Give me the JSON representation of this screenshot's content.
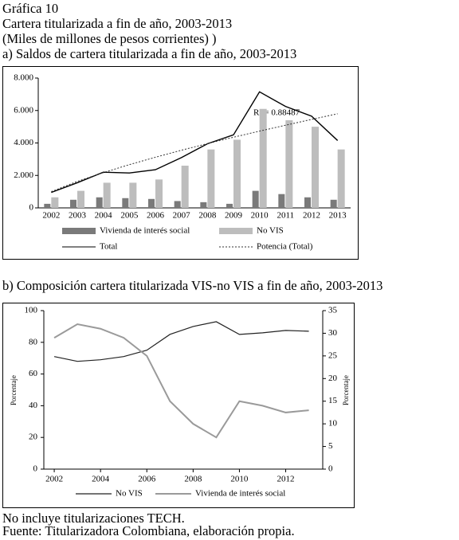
{
  "header": {
    "figure": "Gráfica 10",
    "title": "Cartera titularizada a fin de año, 2003-2013",
    "subtitle": "(Miles de millones de pesos corrientes) )"
  },
  "chart_data": [
    {
      "type": "bar",
      "title": "a) Saldos de cartera titularizada a fin de año, 2003-2013",
      "categories": [
        "2002",
        "2003",
        "2004",
        "2005",
        "2006",
        "2007",
        "2008",
        "2009",
        "2010",
        "2011",
        "2012",
        "2013"
      ],
      "series": [
        {
          "name": "Vivienda de interés social",
          "type": "bar",
          "color": "#7a7a7a",
          "values": [
            250,
            500,
            650,
            600,
            550,
            420,
            350,
            250,
            1050,
            850,
            650,
            500
          ]
        },
        {
          "name": "No VIS",
          "type": "bar",
          "color": "#bdbdbd",
          "values": [
            650,
            1050,
            1550,
            1550,
            1750,
            2600,
            3600,
            4200,
            6100,
            5400,
            5000,
            3600
          ]
        },
        {
          "name": "Total",
          "type": "line",
          "color": "#000000",
          "values": [
            950,
            1550,
            2200,
            2150,
            2350,
            3100,
            3950,
            4500,
            7150,
            6250,
            5650,
            4150
          ]
        },
        {
          "name": "Potencia (Total)",
          "type": "line",
          "dash": true,
          "color": "#333333",
          "values": [
            1000,
            1633,
            2173,
            2664,
            3119,
            3553,
            3960,
            4353,
            4730,
            5093,
            5453,
            5800
          ]
        }
      ],
      "annotation": "R² = 0.88487",
      "ylim": [
        0,
        8000
      ],
      "yticks": [
        0,
        {
          "value": 2000,
          "label": "2.000"
        },
        {
          "value": 4000,
          "label": "4.000"
        },
        {
          "value": 6000,
          "label": "6.000"
        },
        {
          "value": 8000,
          "label": "8.000"
        }
      ],
      "grid": false
    },
    {
      "type": "line",
      "title": "b) Composición cartera titularizada VIS-no VIS a fin de año, 2003-2013",
      "x": [
        2002,
        2003,
        2004,
        2005,
        2006,
        2007,
        2008,
        2009,
        2010,
        2011,
        2012,
        2013
      ],
      "series": [
        {
          "name": "No VIS",
          "color": "#222222",
          "values": [
            71,
            68,
            69,
            71,
            75,
            85,
            90,
            93,
            85,
            86,
            87.5,
            87
          ]
        },
        {
          "name": "Vivienda de interés social",
          "color": "#9a9a9a",
          "axis": "y2",
          "values": [
            29,
            32,
            31,
            29,
            25,
            15,
            10,
            7,
            15,
            14,
            12.5,
            13
          ]
        }
      ],
      "xlim": [
        2001.55,
        2013.6
      ],
      "xticks": [
        2002,
        2004,
        2006,
        2008,
        2010,
        2012
      ],
      "ylim": [
        0,
        100
      ],
      "yticks": [
        0,
        20,
        40,
        60,
        80,
        100
      ],
      "y2lim": [
        0,
        35
      ],
      "y2ticks": [
        0,
        5,
        10,
        15,
        20,
        25,
        30,
        35
      ],
      "ylabel": "Porcentaje",
      "y2label": "Porcentaje",
      "grid": false
    }
  ],
  "notes": [
    "No incluye titularizaciones TECH.",
    "Fuente: Titularizadora Colombiana, elaboración propia."
  ]
}
